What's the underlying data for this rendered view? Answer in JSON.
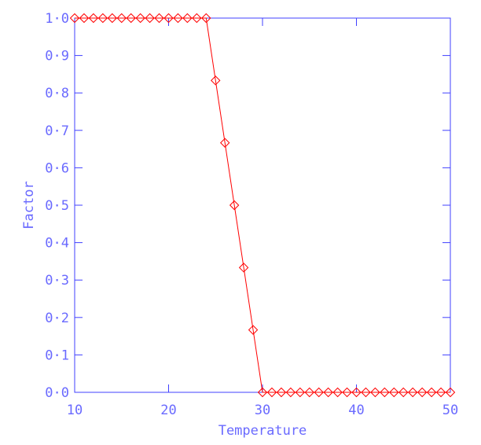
{
  "colors": {
    "axis": "#4040ff",
    "axis_text": "#6a6aff",
    "series": "#ff0000",
    "background": "#ffffff"
  },
  "chart_data": {
    "type": "line",
    "title": "",
    "xlabel": "Temperature",
    "ylabel": "Factor",
    "xlim": [
      10,
      50
    ],
    "ylim": [
      0.0,
      1.0
    ],
    "x_ticks": [
      10,
      20,
      30,
      40,
      50
    ],
    "x_tick_labels": [
      "10",
      "20",
      "30",
      "40",
      "50"
    ],
    "y_ticks": [
      0.0,
      0.1,
      0.2,
      0.3,
      0.4,
      0.5,
      0.6,
      0.7,
      0.8,
      0.9,
      1.0
    ],
    "y_tick_labels": [
      "0·0",
      "0·1",
      "0·2",
      "0·3",
      "0·4",
      "0·5",
      "0·6",
      "0·7",
      "0·8",
      "0·9",
      "1·0"
    ],
    "grid": false,
    "marker": "diamond",
    "series": [
      {
        "x": [
          10,
          11,
          12,
          13,
          14,
          15,
          16,
          17,
          18,
          19,
          20,
          21,
          22,
          23,
          24,
          25,
          26,
          27,
          28,
          29,
          30,
          31,
          32,
          33,
          34,
          35,
          36,
          37,
          38,
          39,
          40,
          41,
          42,
          43,
          44,
          45,
          46,
          47,
          48,
          49,
          50
        ],
        "y": [
          1.0,
          1.0,
          1.0,
          1.0,
          1.0,
          1.0,
          1.0,
          1.0,
          1.0,
          1.0,
          1.0,
          1.0,
          1.0,
          1.0,
          1.0,
          0.8333,
          0.6667,
          0.5,
          0.3333,
          0.1667,
          0.0,
          0.0,
          0.0,
          0.0,
          0.0,
          0.0,
          0.0,
          0.0,
          0.0,
          0.0,
          0.0,
          0.0,
          0.0,
          0.0,
          0.0,
          0.0,
          0.0,
          0.0,
          0.0,
          0.0,
          0.0
        ]
      }
    ]
  }
}
